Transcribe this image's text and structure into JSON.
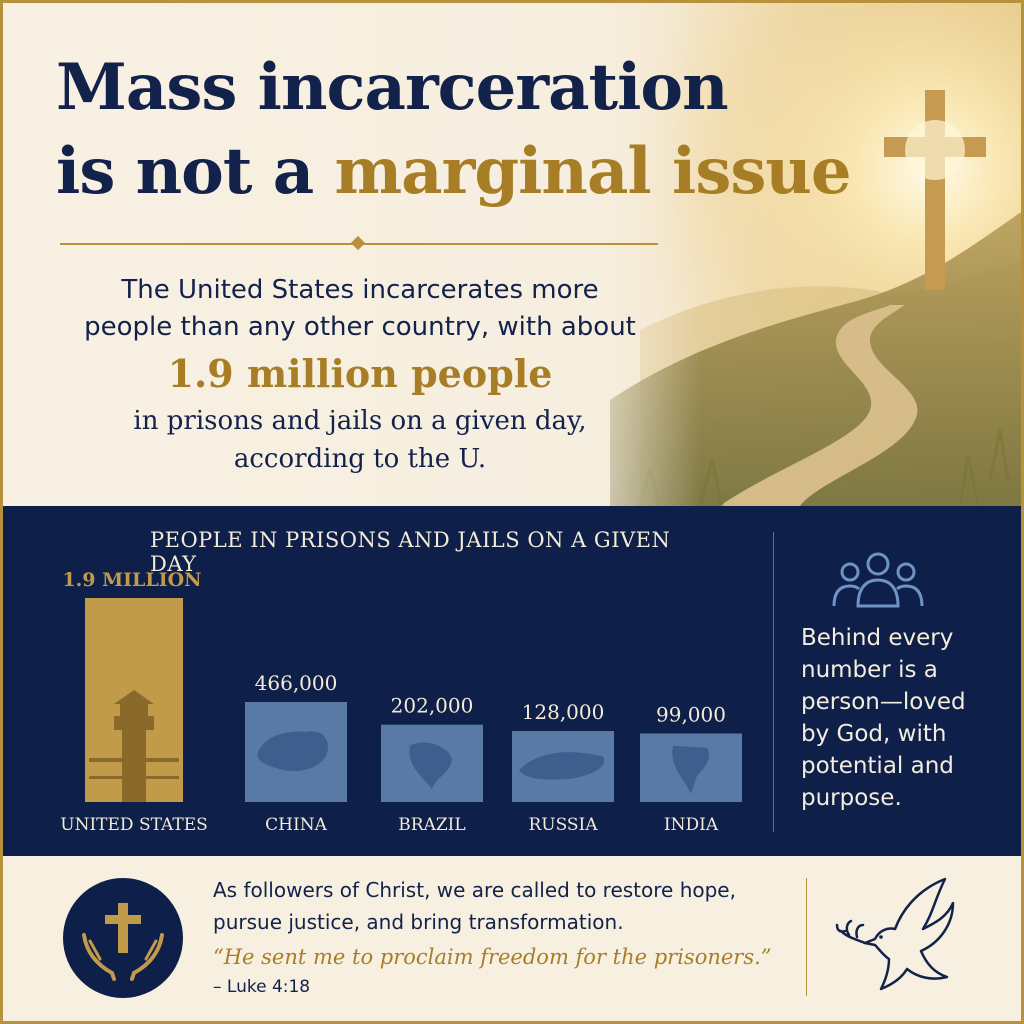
{
  "headline": {
    "line1": "Mass incarceration",
    "line2_plain": "is not a ",
    "line2_accent": "marginal issue"
  },
  "intro": {
    "line1": "The United States incarcerates more",
    "line2": "people than any other country, with about",
    "highlight": "1.9 million people",
    "line3": "in prisons and jails on a given day,",
    "line4": "according to the U."
  },
  "chart_data": {
    "type": "bar",
    "title": "PEOPLE IN PRISONS AND JAILS ON A GIVEN DAY",
    "categories": [
      "UNITED STATES",
      "CHINA",
      "BRAZIL",
      "RUSSIA",
      "INDIA"
    ],
    "values": [
      1900000,
      466000,
      202000,
      128000,
      99000
    ],
    "value_labels": [
      "1.9 MILLION",
      "466,000",
      "202,000",
      "128,000",
      "99,000"
    ],
    "icons": [
      "watchtower-icon",
      "china-map-icon",
      "brazil-map-icon",
      "russia-map-icon",
      "india-map-icon"
    ],
    "highlight_color": "#c19a4a",
    "bar_color": "#5a7aa6"
  },
  "side_note": {
    "icon": "people-group-icon",
    "text": "Behind every number is a person—loved by God, with potential and purpose."
  },
  "bottom": {
    "emblem_icon": "cross-in-hands-icon",
    "call": "As followers of Christ, we are called to restore hope, pursue justice, and bring transformation.",
    "quote": "“He sent me to proclaim freedom for the prisoners.”",
    "reference": "– Luke 4:18",
    "dove_icon": "dove-with-olive-branch-icon"
  },
  "colors": {
    "navy": "#12224a",
    "gold": "#a77e26",
    "cream": "#f7efe0",
    "band": "#0e2049"
  }
}
